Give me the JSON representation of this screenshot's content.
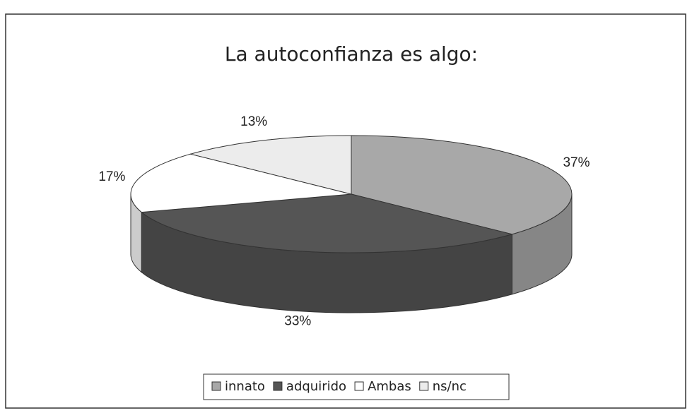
{
  "chart_data": {
    "type": "pie",
    "title": "La autoconfianza es algo:",
    "categories": [
      "innato",
      "adquirido",
      "Ambas",
      "ns/nc"
    ],
    "values": [
      37,
      33,
      17,
      13
    ],
    "value_labels": [
      "37%",
      "33%",
      "17%",
      "13%"
    ],
    "colors": [
      "#a8a8a8",
      "#555555",
      "#ffffff",
      "#ececec"
    ],
    "legend": "bottom"
  }
}
